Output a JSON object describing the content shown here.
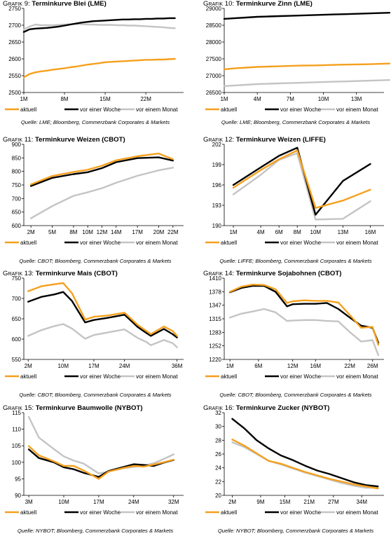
{
  "legend": {
    "aktuell": "aktuell",
    "week": "vor einer Woche",
    "month": "vor einem Monat"
  },
  "colors": {
    "aktuell": "#f5a01e",
    "week": "#000000",
    "month": "#c4c4c4"
  },
  "panels": [
    {
      "prefix": "Grafik 9: ",
      "title": "Terminkurve Blei (LME)",
      "source": "Quelle: LME; Bloomberg, Commerzbank Corporates & Markets"
    },
    {
      "prefix": "Grafik 10: ",
      "title": "Terminkurve Zinn (LME)",
      "source": "Quelle: LME; Bloomberg, Commerzbank Corporates & Markets"
    },
    {
      "prefix": "Grafik 11: ",
      "title": "Terminkurve Weizen (CBOT)",
      "source": "Quelle: CBOT; Bloomberg, Commerzbank Corporates & Markets"
    },
    {
      "prefix": "Grafik 12: ",
      "title": "Terminkurve Weizen (LIFFE)",
      "source": "Quelle: LIFFE; Bloomberg, Commerzbank Corporates & Markets"
    },
    {
      "prefix": "Grafik 13: ",
      "title": "Terminkurve Mais (CBOT)",
      "source": "Quelle: CBOT; Bloomberg, Commerzbank Corporates & Markets"
    },
    {
      "prefix": "Grafik 14: ",
      "title": "Terminkurve Sojabohnen (CBOT)",
      "source": "Quelle: CBOT; Bloomberg, Commerzbank Corporates & Markets"
    },
    {
      "prefix": "Grafik 15: ",
      "title": "Terminkurve Baumwolle (NYBOT)",
      "source": "Quelle: NYBOT; Bloomberg, Commerzbank Corporates & Markets"
    },
    {
      "prefix": "Grafik 16: ",
      "title": "Terminkurve Zucker (NYBOT)",
      "source": "Quelle: NYBOT; Bloomberg, Commerzbank Corporates & Markets"
    }
  ],
  "chart_data": [
    {
      "type": "line",
      "title": "Terminkurve Blei (LME)",
      "x": [
        1,
        2,
        3,
        4,
        5,
        6,
        7,
        8,
        9,
        10,
        11,
        12,
        13,
        14,
        15,
        16,
        17,
        18,
        19,
        20,
        21,
        22,
        23,
        24,
        25,
        26,
        27
      ],
      "xticks": [
        1,
        8,
        15,
        22
      ],
      "xticklabels": [
        "1M",
        "8M",
        "15M",
        "22M"
      ],
      "xlim": [
        1,
        28.5
      ],
      "yticks": [
        2500,
        2550,
        2600,
        2650,
        2700,
        2750
      ],
      "ylim": [
        2500,
        2750
      ],
      "series": [
        {
          "key": "aktuell",
          "name": "aktuell",
          "values": [
            2545,
            2555,
            2560,
            2563,
            2565,
            2568,
            2570,
            2572,
            2575,
            2577,
            2580,
            2583,
            2585,
            2587,
            2590,
            2591,
            2592,
            2593,
            2594,
            2595,
            2596,
            2597,
            2597,
            2598,
            2598,
            2599,
            2600
          ]
        },
        {
          "key": "week",
          "name": "vor einer Woche",
          "values": [
            2680,
            2688,
            2690,
            2691,
            2692,
            2694,
            2696,
            2699,
            2702,
            2705,
            2708,
            2710,
            2712,
            2713,
            2714,
            2715,
            2716,
            2717,
            2717,
            2718,
            2718,
            2719,
            2719,
            2720,
            2720,
            2721,
            2721
          ]
        },
        {
          "key": "month",
          "name": "vor einem Monat",
          "values": [
            2688,
            2696,
            2702,
            2700,
            2700,
            2700,
            2701,
            2702,
            2703,
            2704,
            2703,
            2702,
            2702,
            2701,
            2701,
            2701,
            2700,
            2700,
            2699,
            2699,
            2698,
            2697,
            2696,
            2695,
            2694,
            2692,
            2691
          ]
        }
      ]
    },
    {
      "type": "line",
      "title": "Terminkurve Zinn (LME)",
      "x": [
        1,
        2,
        3,
        4,
        5,
        6,
        7,
        8,
        9,
        10,
        11,
        12,
        13,
        14,
        15,
        16
      ],
      "xticks": [
        1,
        4,
        7,
        10,
        13
      ],
      "xticklabels": [
        "1M",
        "4M",
        "7M",
        "10M",
        "13M"
      ],
      "xlim": [
        1,
        15.5
      ],
      "yticks": [
        26500,
        27000,
        27500,
        28000,
        28500,
        29000
      ],
      "ylim": [
        26500,
        29000
      ],
      "series": [
        {
          "key": "aktuell",
          "name": "aktuell",
          "values": [
            27190,
            27220,
            27240,
            27260,
            27270,
            27280,
            27290,
            27300,
            27305,
            27310,
            27320,
            27330,
            27335,
            27340,
            27350,
            27360
          ]
        },
        {
          "key": "week",
          "name": "vor einer Woche",
          "values": [
            28690,
            28710,
            28730,
            28750,
            28760,
            28770,
            28780,
            28790,
            28800,
            28810,
            28820,
            28830,
            28840,
            28850,
            28860,
            28870
          ]
        },
        {
          "key": "month",
          "name": "vor einem Monat",
          "values": [
            26690,
            26710,
            26730,
            26750,
            26760,
            26770,
            26780,
            26790,
            26800,
            26810,
            26820,
            26830,
            26840,
            26850,
            26860,
            26870
          ]
        }
      ]
    },
    {
      "type": "line",
      "title": "Terminkurve Weizen (CBOT)",
      "x": [
        2,
        5,
        8,
        10,
        12,
        14,
        17,
        20,
        22
      ],
      "xticks": [
        2,
        5,
        8,
        10,
        12,
        14,
        17,
        20,
        22
      ],
      "xticklabels": [
        "2M",
        "5M",
        "8M",
        "10M",
        "12M",
        "14M",
        "17M",
        "20M",
        "22M"
      ],
      "xlim": [
        1,
        23.5
      ],
      "yticks": [
        600,
        650,
        700,
        750,
        800,
        850,
        900
      ],
      "ylim": [
        600,
        900
      ],
      "series": [
        {
          "key": "aktuell",
          "name": "aktuell",
          "values": [
            752,
            783,
            798,
            806,
            821,
            841,
            856,
            866,
            845
          ]
        },
        {
          "key": "week",
          "name": "vor einer Woche",
          "values": [
            746,
            776,
            790,
            797,
            812,
            834,
            849,
            852,
            840
          ]
        },
        {
          "key": "month",
          "name": "vor einem Monat",
          "values": [
            627,
            672,
            710,
            723,
            738,
            758,
            784,
            804,
            814
          ]
        }
      ]
    },
    {
      "type": "line",
      "title": "Terminkurve Weizen (LIFFE)",
      "x": [
        1,
        4,
        6,
        8,
        10,
        13,
        16
      ],
      "xticks": [
        1,
        4,
        6,
        8,
        10,
        13,
        16
      ],
      "xticklabels": [
        "1M",
        "4M",
        "6M",
        "8M",
        "10M",
        "13M",
        "16M"
      ],
      "xlim": [
        0,
        17.5
      ],
      "yticks": [
        190,
        193,
        196,
        199,
        202
      ],
      "ylim": [
        190,
        202
      ],
      "series": [
        {
          "key": "aktuell",
          "name": "aktuell",
          "values": [
            195.6,
            198.2,
            199.8,
            201.1,
            192.6,
            193.7,
            195.3
          ]
        },
        {
          "key": "week",
          "name": "vor einer Woche",
          "values": [
            196.0,
            198.6,
            200.3,
            201.5,
            191.6,
            196.6,
            199.1
          ]
        },
        {
          "key": "month",
          "name": "vor einem Monat",
          "values": [
            194.6,
            197.5,
            199.7,
            200.7,
            190.9,
            191.0,
            193.6
          ]
        }
      ]
    },
    {
      "type": "line",
      "title": "Terminkurve Mais (CBOT)",
      "x": [
        2,
        5,
        8,
        10,
        12,
        15,
        17,
        20,
        24,
        26,
        27,
        29,
        30,
        33,
        35,
        36
      ],
      "xticks": [
        2,
        10,
        17,
        24,
        36
      ],
      "xticklabels": [
        "2M",
        "10M",
        "17M",
        "24M",
        "36M"
      ],
      "xlim": [
        1,
        37.5
      ],
      "yticks": [
        550,
        600,
        650,
        700,
        750
      ],
      "ylim": [
        550,
        750
      ],
      "series": [
        {
          "key": "aktuell",
          "name": "aktuell",
          "values": [
            718,
            730,
            735,
            738,
            713,
            648,
            655,
            658,
            665,
            645,
            635,
            620,
            612,
            631,
            620,
            608
          ]
        },
        {
          "key": "week",
          "name": "vor einer Woche",
          "values": [
            692,
            704,
            710,
            716,
            694,
            641,
            647,
            652,
            660,
            640,
            630,
            615,
            608,
            625,
            612,
            604
          ]
        },
        {
          "key": "month",
          "name": "vor einem Monat",
          "values": [
            608,
            622,
            632,
            637,
            626,
            601,
            610,
            616,
            624,
            610,
            603,
            593,
            585,
            598,
            590,
            580
          ]
        }
      ]
    },
    {
      "type": "line",
      "title": "Terminkurve Sojabohnen (CBOT)",
      "x": [
        1,
        3,
        5,
        7,
        9,
        11,
        12,
        14,
        16,
        18,
        20,
        22,
        24,
        26,
        27
      ],
      "xticks": [
        1,
        6,
        12,
        16,
        22,
        26
      ],
      "xticklabels": [
        "1M",
        "6M",
        "12M",
        "16M",
        "22M",
        "26M"
      ],
      "xlim": [
        0,
        28
      ],
      "yticks": [
        1220,
        1252,
        1283,
        1315,
        1347,
        1378,
        1410
      ],
      "ylim": [
        1220,
        1410
      ],
      "series": [
        {
          "key": "aktuell",
          "name": "aktuell",
          "values": [
            1378,
            1390,
            1395,
            1394,
            1384,
            1352,
            1356,
            1358,
            1357,
            1357,
            1353,
            1324,
            1294,
            1296,
            1254
          ]
        },
        {
          "key": "week",
          "name": "vor einer Woche",
          "values": [
            1377,
            1387,
            1392,
            1392,
            1378,
            1344,
            1349,
            1350,
            1350,
            1352,
            1338,
            1318,
            1299,
            1294,
            1259
          ]
        },
        {
          "key": "month",
          "name": "vor einem Monat",
          "values": [
            1318,
            1327,
            1332,
            1338,
            1330,
            1310,
            1311,
            1312,
            1312,
            1310,
            1309,
            1284,
            1262,
            1265,
            1230
          ]
        }
      ]
    },
    {
      "type": "line",
      "title": "Terminkurve Baumwolle (NYBOT)",
      "x": [
        3,
        5,
        8,
        10,
        12,
        14,
        17,
        19,
        22,
        24,
        26,
        28,
        30,
        32
      ],
      "xticks": [
        3,
        10,
        17,
        24,
        32
      ],
      "xticklabels": [
        "3M",
        "10M",
        "17M",
        "24M",
        "32M"
      ],
      "xlim": [
        2,
        34
      ],
      "yticks": [
        90,
        95,
        100,
        105,
        110,
        115
      ],
      "ylim": [
        90,
        115
      ],
      "series": [
        {
          "key": "aktuell",
          "name": "aktuell",
          "values": [
            104.9,
            102.1,
            100.3,
            98.9,
            98.9,
            97.5,
            95.0,
            97.2,
            98.3,
            98.9,
            98.7,
            99.3,
            100.0,
            100.8
          ]
        },
        {
          "key": "week",
          "name": "vor einer Woche",
          "values": [
            103.9,
            101.3,
            100.0,
            98.5,
            97.9,
            96.8,
            95.6,
            97.4,
            98.6,
            99.4,
            99.2,
            98.9,
            99.9,
            100.7
          ]
        },
        {
          "key": "month",
          "name": "vor einem Monat",
          "values": [
            113.7,
            107.5,
            104.0,
            101.8,
            100.5,
            99.6,
            96.6,
            97.2,
            98.2,
            98.6,
            99.0,
            99.7,
            101.0,
            102.4
          ]
        }
      ]
    },
    {
      "type": "line",
      "title": "Terminkurve Zucker (NYBOT)",
      "x": [
        2,
        5,
        8,
        11,
        14,
        17,
        20,
        23,
        26,
        29,
        32,
        35,
        38
      ],
      "xticks": [
        2,
        9,
        15,
        21,
        27,
        34
      ],
      "xticklabels": [
        "2M",
        "9M",
        "15M",
        "21M",
        "27M",
        "34M"
      ],
      "xlim": [
        0,
        39.5
      ],
      "yticks": [
        20,
        22,
        24,
        26,
        28,
        30,
        32
      ],
      "ylim": [
        20,
        32
      ],
      "series": [
        {
          "key": "aktuell",
          "name": "aktuell",
          "values": [
            28.1,
            27.2,
            26.1,
            25.0,
            24.6,
            24.0,
            23.4,
            22.9,
            22.4,
            22.0,
            21.6,
            21.3,
            21.0
          ]
        },
        {
          "key": "week",
          "name": "vor einer Woche",
          "values": [
            31.1,
            29.7,
            28.0,
            26.8,
            25.8,
            25.1,
            24.3,
            23.6,
            23.1,
            22.5,
            21.9,
            21.5,
            21.3
          ]
        },
        {
          "key": "month",
          "name": "vor einem Monat",
          "values": [
            27.7,
            27.0,
            26.0,
            25.0,
            24.5,
            23.9,
            23.3,
            22.8,
            22.3,
            21.8,
            21.4,
            21.1,
            21.1
          ]
        }
      ]
    }
  ]
}
